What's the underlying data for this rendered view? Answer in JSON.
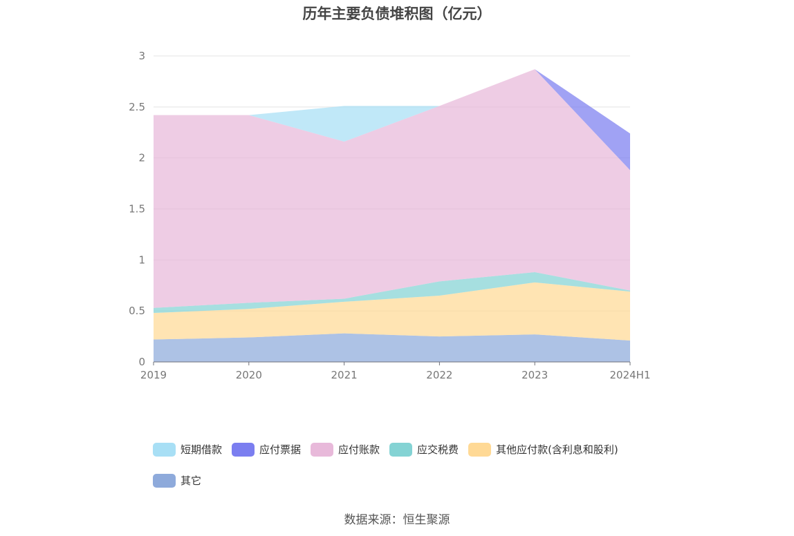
{
  "chart_data": {
    "type": "area",
    "stacked": true,
    "title": "历年主要负债堆积图（亿元）",
    "xlabel": "",
    "ylabel": "",
    "categories": [
      "2019",
      "2020",
      "2021",
      "2022",
      "2023",
      "2024H1"
    ],
    "ylim": [
      0,
      3
    ],
    "yticks": [
      "0",
      "0.5",
      "1",
      "1.5",
      "2",
      "2.5",
      "3"
    ],
    "grid": true,
    "legend_position": "bottom",
    "series": [
      {
        "name": "其它",
        "color": "#8eaadb",
        "values": [
          0.22,
          0.24,
          0.28,
          0.25,
          0.27,
          0.21
        ]
      },
      {
        "name": "其他应付款(含利息和股利)",
        "color": "#ffd995",
        "values": [
          0.26,
          0.28,
          0.31,
          0.4,
          0.51,
          0.48
        ]
      },
      {
        "name": "应交税费",
        "color": "#84d3d4",
        "values": [
          0.05,
          0.06,
          0.03,
          0.14,
          0.1,
          0.01
        ]
      },
      {
        "name": "应付账款",
        "color": "#e8b9da",
        "values": [
          1.89,
          1.84,
          1.54,
          1.72,
          1.99,
          1.18
        ]
      },
      {
        "name": "应付票据",
        "color": "#7b7ef0",
        "values": [
          0,
          0,
          0,
          0,
          0,
          0.36
        ]
      },
      {
        "name": "短期借款",
        "color": "#a8dff5",
        "values": [
          0,
          0,
          0.35,
          0,
          0,
          0
        ]
      }
    ]
  },
  "legend_order": [
    "短期借款",
    "应付票据",
    "应付账款",
    "应交税费",
    "其他应付款(含利息和股利)",
    "其它"
  ],
  "source": "数据来源：恒生聚源"
}
